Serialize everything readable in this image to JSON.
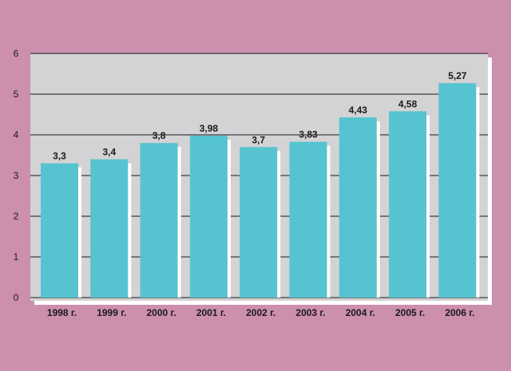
{
  "chart_data": {
    "type": "bar",
    "title": "",
    "xlabel": "",
    "ylabel": "",
    "categories": [
      "1998 г.",
      "1999 г.",
      "2000 г.",
      "2001 г.",
      "2002 г.",
      "2003 г.",
      "2004 г.",
      "2005 г.",
      "2006 г."
    ],
    "values": [
      3.3,
      3.4,
      3.8,
      3.98,
      3.7,
      3.83,
      4.43,
      4.58,
      5.27
    ],
    "value_labels": [
      "3,3",
      "3,4",
      "3,8",
      "3,98",
      "3,7",
      "3,83",
      "4,43",
      "4,58",
      "5,27"
    ],
    "ylim": [
      0,
      6
    ],
    "yticks": [
      "0",
      "1",
      "2",
      "3",
      "4",
      "5",
      "6"
    ],
    "grid": true,
    "legend": "none",
    "colors": {
      "background": "#cc8fae",
      "plot_area": "#d3d3d5",
      "bar": "#56c4d0",
      "bar_shadow": "#ffffff",
      "grid": "#1a1a1a"
    }
  }
}
